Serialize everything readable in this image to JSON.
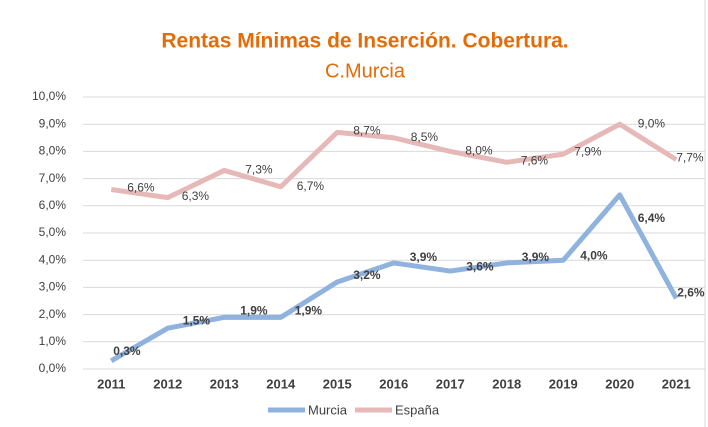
{
  "chart_data": {
    "type": "line",
    "title": "Rentas Mínimas de Inserción. Cobertura.",
    "subtitle": "C.Murcia",
    "categories": [
      "2011",
      "2012",
      "2013",
      "2014",
      "2015",
      "2016",
      "2017",
      "2018",
      "2019",
      "2020",
      "2021"
    ],
    "series": [
      {
        "name": "Murcia",
        "color": "#8fb2de",
        "values": [
          0.3,
          1.5,
          1.9,
          1.9,
          3.2,
          3.9,
          3.6,
          3.9,
          4.0,
          6.4,
          2.6
        ],
        "value_labels": [
          "0,3%",
          "1,5%",
          "1,9%",
          "1,9%",
          "3,2%",
          "3,9%",
          "3,6%",
          "3,9%",
          "4,0%",
          "6,4%",
          "2,6%"
        ]
      },
      {
        "name": "España",
        "color": "#e6b9b8",
        "values": [
          6.6,
          6.3,
          7.3,
          6.7,
          8.7,
          8.5,
          8.0,
          7.6,
          7.9,
          9.0,
          7.7
        ],
        "value_labels": [
          "6,6%",
          "6,3%",
          "7,3%",
          "6,7%",
          "8,7%",
          "8,5%",
          "8,0%",
          "7,6%",
          "7,9%",
          "9,0%",
          "7,7%"
        ]
      }
    ],
    "ylim": [
      0,
      10
    ],
    "yticks": [
      {
        "value": 0,
        "label": "0,0%"
      },
      {
        "value": 1,
        "label": "1,0%"
      },
      {
        "value": 2,
        "label": "2,0%"
      },
      {
        "value": 3,
        "label": "3,0%"
      },
      {
        "value": 4,
        "label": "4,0%"
      },
      {
        "value": 5,
        "label": "5,0%"
      },
      {
        "value": 6,
        "label": "6,0%"
      },
      {
        "value": 7,
        "label": "7,0%"
      },
      {
        "value": 8,
        "label": "8,0%"
      },
      {
        "value": 9,
        "label": "9,0%"
      },
      {
        "value": 10,
        "label": "10,0%"
      }
    ],
    "grid": true,
    "legend": "bottom"
  }
}
